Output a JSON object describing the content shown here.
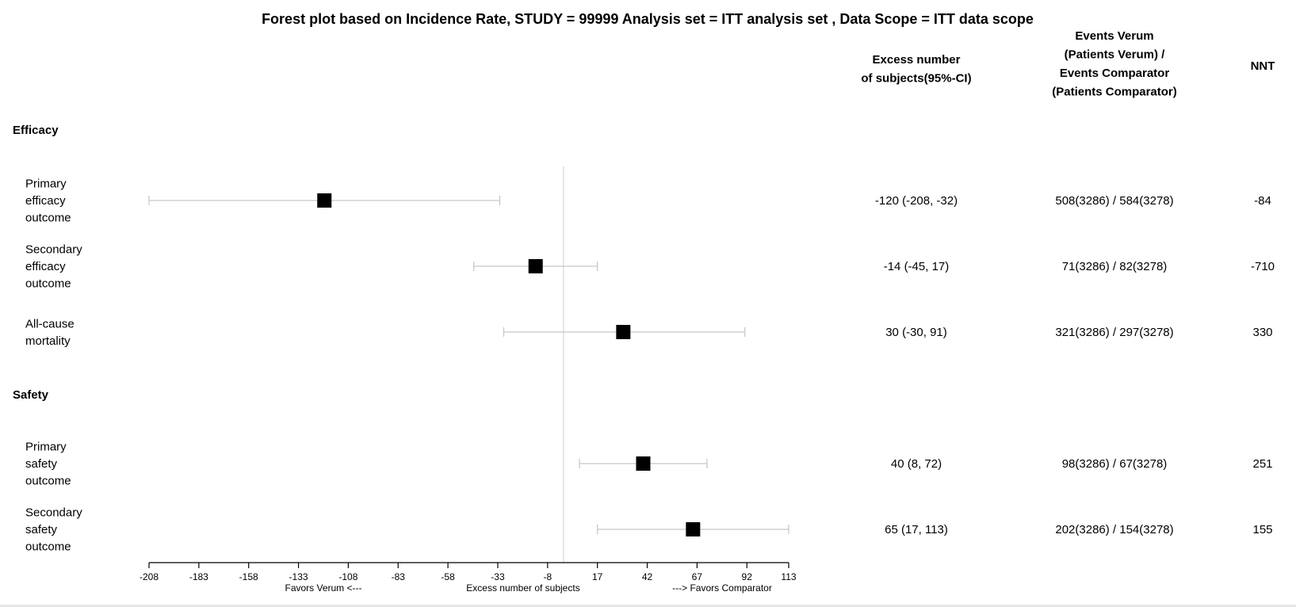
{
  "chart_data": {
    "type": "forest",
    "title": "Forest plot based on Incidence Rate, STUDY = 99999 Analysis set = ITT analysis set , Data Scope = ITT data scope",
    "columns": {
      "excess": [
        "Excess number",
        "of subjects(95%-CI)"
      ],
      "events": [
        "Events Verum",
        "(Patients Verum) /",
        "Events Comparator",
        "(Patients Comparator)"
      ],
      "nnt": [
        "NNT"
      ]
    },
    "xaxis": {
      "range": [
        -208,
        113
      ],
      "ticks": [
        "-208",
        "-183",
        "-158",
        "-133",
        "-108",
        "-83",
        "-58",
        "-33",
        "-8",
        "17",
        "42",
        "67",
        "92",
        "113"
      ],
      "reference": 0,
      "label_left": "Favors Verum <---",
      "label_center": "Excess number of subjects",
      "label_right": "---> Favors Comparator"
    },
    "groups": [
      {
        "name": "Efficacy",
        "rows": [
          {
            "label": [
              "Primary",
              "efficacy",
              "outcome"
            ],
            "estimate": -120,
            "lower": -208,
            "upper": -32,
            "excess_text": "-120 (-208, -32)",
            "events_text": "508(3286) / 584(3278)",
            "nnt": "-84"
          },
          {
            "label": [
              "Secondary",
              "efficacy",
              "outcome"
            ],
            "estimate": -14,
            "lower": -45,
            "upper": 17,
            "excess_text": "-14 (-45, 17)",
            "events_text": "71(3286) / 82(3278)",
            "nnt": "-710"
          },
          {
            "label": [
              "All-cause",
              "mortality"
            ],
            "estimate": 30,
            "lower": -30,
            "upper": 91,
            "excess_text": "30 (-30, 91)",
            "events_text": "321(3286) / 297(3278)",
            "nnt": "330"
          }
        ]
      },
      {
        "name": "Safety",
        "rows": [
          {
            "label": [
              "Primary",
              "safety",
              "outcome"
            ],
            "estimate": 40,
            "lower": 8,
            "upper": 72,
            "excess_text": "40 (8, 72)",
            "events_text": "98(3286) / 67(3278)",
            "nnt": "251"
          },
          {
            "label": [
              "Secondary",
              "safety",
              "outcome"
            ],
            "estimate": 65,
            "lower": 17,
            "upper": 113,
            "excess_text": "65 (17, 113)",
            "events_text": "202(3286) / 154(3278)",
            "nnt": "155"
          }
        ]
      }
    ]
  }
}
